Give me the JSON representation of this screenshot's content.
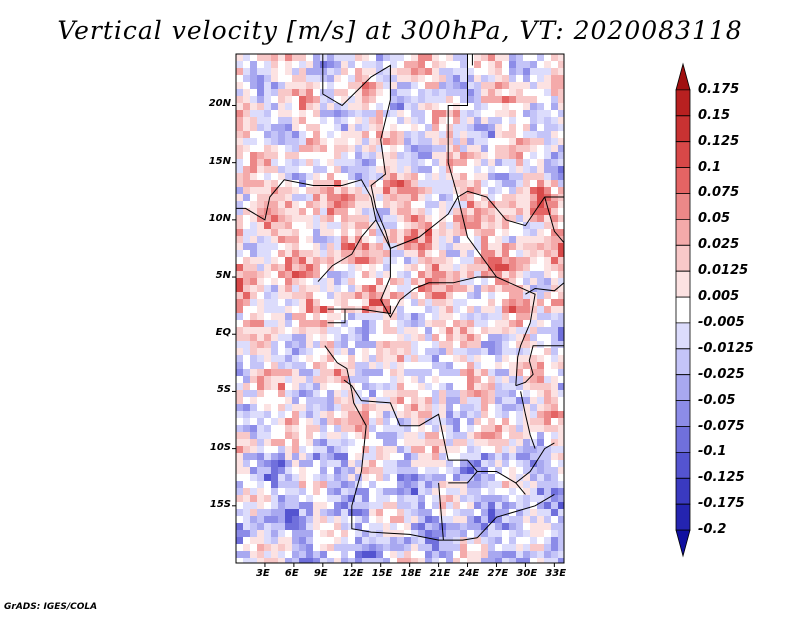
{
  "title": "Vertical velocity [m/s] at 300hPa, VT: 2020083118",
  "footer": "GrADS: IGES/COLA",
  "map": {
    "lat_labels": [
      "20N",
      "15N",
      "10N",
      "5N",
      "EQ",
      "5S",
      "10S",
      "15S"
    ],
    "lon_labels": [
      "3E",
      "6E",
      "9E",
      "12E",
      "15E",
      "18E",
      "21E",
      "24E",
      "27E",
      "30E",
      "33E"
    ],
    "lat_values": [
      20,
      15,
      10,
      5,
      0,
      -5,
      -10,
      -15
    ],
    "lon_values": [
      3,
      6,
      9,
      12,
      15,
      18,
      21,
      24,
      27,
      30,
      33
    ],
    "lon_range": [
      0,
      34
    ],
    "lat_range": [
      -20,
      24.5
    ],
    "border_color": "#000000"
  },
  "colorbar": {
    "levels": [
      "0.175",
      "0.15",
      "0.125",
      "0.1",
      "0.075",
      "0.05",
      "0.025",
      "0.0125",
      "0.005",
      "-0.005",
      "-0.0125",
      "-0.025",
      "-0.05",
      "-0.075",
      "-0.1",
      "-0.125",
      "-0.175",
      "-0.2"
    ],
    "colors": [
      "#a01010",
      "#b82020",
      "#c83232",
      "#d84848",
      "#e46464",
      "#ec8888",
      "#f4aaaa",
      "#f8c8c8",
      "#fce2e2",
      "#ffffff",
      "#dcdcfc",
      "#c4c4f8",
      "#a8a8f0",
      "#8c8ce8",
      "#7070dc",
      "#5454d0",
      "#3a3ac0",
      "#2424b0",
      "#1010a0"
    ]
  }
}
